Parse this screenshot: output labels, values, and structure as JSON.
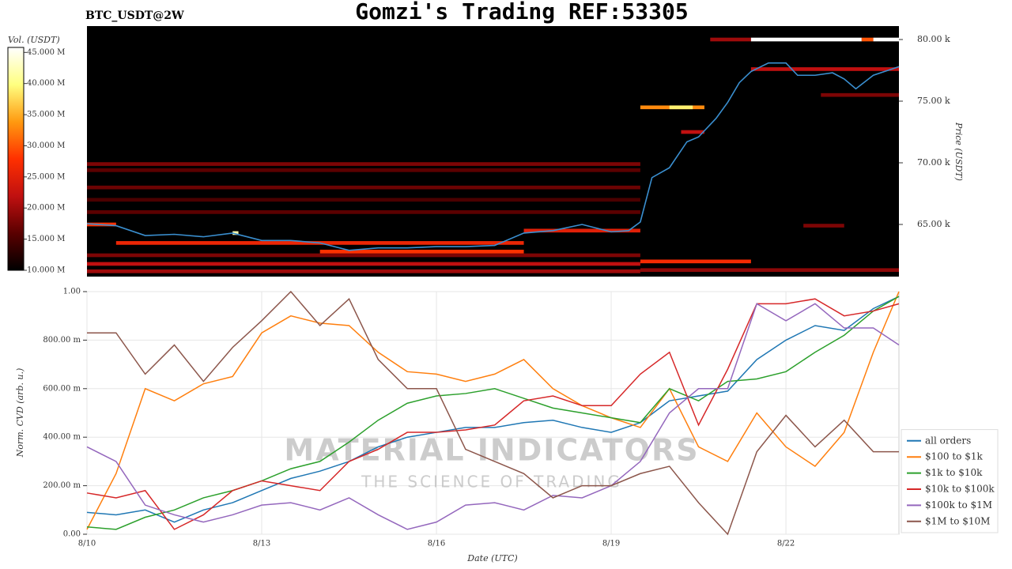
{
  "chart_data": [
    {
      "type": "heatmap",
      "title": "Gomzi's Trading REF:53305",
      "subtitle": "BTC_USDT@2W",
      "y_label": "Price (USDT)",
      "colorbar_label": "Vol. (USDT)",
      "xlim": [
        0,
        13.94
      ],
      "ylim": [
        60770,
        81090
      ],
      "yticks": [
        {
          "value": 65000,
          "label": "65.00 k"
        },
        {
          "value": 70000,
          "label": "70.00 k"
        },
        {
          "value": 75000,
          "label": "75.00 k"
        },
        {
          "value": 80000,
          "label": "80.00 k"
        }
      ],
      "clim": [
        10,
        45.8
      ],
      "cticks": [
        {
          "value": 10,
          "label": "10.000 M"
        },
        {
          "value": 15,
          "label": "15.000 M"
        },
        {
          "value": 20,
          "label": "20.000 M"
        },
        {
          "value": 25,
          "label": "25.000 M"
        },
        {
          "value": 30,
          "label": "30.000 M"
        },
        {
          "value": 35,
          "label": "35.000 M"
        },
        {
          "value": 40,
          "label": "40.000 M"
        },
        {
          "value": 45,
          "label": "45.000 M"
        }
      ],
      "colorscale": [
        "#000000",
        "#5a0000",
        "#c01010",
        "#ff3000",
        "#ff9a10",
        "#ffff80",
        "#ffffff"
      ],
      "cells": [
        {
          "x": [
            0,
            9.5
          ],
          "y": 69900,
          "value": 18
        },
        {
          "x": [
            0,
            9.5
          ],
          "y": 69400,
          "value": 16
        },
        {
          "x": [
            0,
            9.5
          ],
          "y": 68000,
          "value": 17
        },
        {
          "x": [
            0,
            9.5
          ],
          "y": 67000,
          "value": 15
        },
        {
          "x": [
            0,
            9.5
          ],
          "y": 66000,
          "value": 16
        },
        {
          "x": [
            0,
            0.5
          ],
          "y": 65000,
          "value": 28
        },
        {
          "x": [
            0,
            9.5
          ],
          "y": 62500,
          "value": 18
        },
        {
          "x": [
            0,
            9.5
          ],
          "y": 61800,
          "value": 22
        },
        {
          "x": [
            0,
            9.5
          ],
          "y": 61200,
          "value": 20
        },
        {
          "x": [
            0.5,
            7.5
          ],
          "y": 63500,
          "value": 26
        },
        {
          "x": [
            4,
            7.5
          ],
          "y": 62800,
          "value": 28
        },
        {
          "x": [
            7.5,
            9.5
          ],
          "y": 64500,
          "value": 25
        },
        {
          "x": [
            2.5,
            2.6
          ],
          "y": 64300,
          "value": 42
        },
        {
          "x": [
            9.5,
            11.4
          ],
          "y": 62000,
          "value": 27
        },
        {
          "x": [
            9.5,
            13.94
          ],
          "y": 61300,
          "value": 19
        },
        {
          "x": [
            9.5,
            10.6
          ],
          "y": 74500,
          "value": 33
        },
        {
          "x": [
            10,
            10.4
          ],
          "y": 74500,
          "value": 39
        },
        {
          "x": [
            10.2,
            10.6
          ],
          "y": 72500,
          "value": 22
        },
        {
          "x": [
            10.7,
            11.4
          ],
          "y": 80000,
          "value": 20
        },
        {
          "x": [
            11.4,
            13.3
          ],
          "y": 80000,
          "value": 45.8
        },
        {
          "x": [
            13.3,
            13.5
          ],
          "y": 80000,
          "value": 30
        },
        {
          "x": [
            13.5,
            13.94
          ],
          "y": 80000,
          "value": 45.8
        },
        {
          "x": [
            12.6,
            13.94
          ],
          "y": 75500,
          "value": 18
        },
        {
          "x": [
            12.3,
            13
          ],
          "y": 64900,
          "value": 18
        },
        {
          "x": [
            11.4,
            13.94
          ],
          "y": 77600,
          "value": 22
        }
      ],
      "line": {
        "color": "#3a8fd0",
        "x": [
          0,
          0.5,
          1,
          1.5,
          2,
          2.5,
          3,
          3.5,
          4,
          4.5,
          5,
          5.5,
          6,
          6.5,
          7,
          7.5,
          8,
          8.5,
          9,
          9.3,
          9.5,
          9.7,
          10,
          10.3,
          10.5,
          10.8,
          11,
          11.2,
          11.4,
          11.7,
          12,
          12.2,
          12.5,
          12.8,
          13,
          13.2,
          13.5,
          13.94
        ],
        "values": [
          65060,
          64900,
          64100,
          64200,
          64000,
          64300,
          63700,
          63700,
          63500,
          62900,
          63100,
          63100,
          63200,
          63200,
          63300,
          64300,
          64500,
          65000,
          64400,
          64500,
          65200,
          68800,
          69600,
          71700,
          72100,
          73600,
          74900,
          76500,
          77400,
          78100,
          78100,
          77100,
          77100,
          77300,
          76800,
          76000,
          77100,
          77800
        ]
      }
    },
    {
      "type": "line",
      "x_label": "Date (UTC)",
      "y_label": "Norm. CVD (arb. u.)",
      "xlim": [
        0,
        13.94
      ],
      "ylim": [
        0,
        1
      ],
      "grid": true,
      "legend": "lower right",
      "watermark": [
        "MATERIAL INDICATORS",
        "THE SCIENCE OF TRADING"
      ],
      "xticks": [
        {
          "value": 0,
          "label": "8/10"
        },
        {
          "value": 3,
          "label": "8/13"
        },
        {
          "value": 6,
          "label": "8/16"
        },
        {
          "value": 9,
          "label": "8/19"
        },
        {
          "value": 12,
          "label": "8/22"
        }
      ],
      "yticks": [
        {
          "value": 0,
          "label": "0.00"
        },
        {
          "value": 0.2,
          "label": "200.00 m"
        },
        {
          "value": 0.4,
          "label": "400.00 m"
        },
        {
          "value": 0.6,
          "label": "600.00 m"
        },
        {
          "value": 0.8,
          "label": "800.00 m"
        },
        {
          "value": 1,
          "label": "1.00"
        }
      ],
      "x": [
        0,
        0.5,
        1,
        1.5,
        2,
        2.5,
        3,
        3.5,
        4,
        4.5,
        5,
        5.5,
        6,
        6.5,
        7,
        7.5,
        8,
        8.5,
        9,
        9.5,
        10,
        10.5,
        11,
        11.5,
        12,
        12.5,
        13,
        13.5,
        13.94
      ],
      "series": [
        {
          "name": "all orders",
          "color": "#1f77b4",
          "values": [
            0.09,
            0.08,
            0.1,
            0.05,
            0.1,
            0.13,
            0.18,
            0.23,
            0.26,
            0.3,
            0.36,
            0.4,
            0.42,
            0.44,
            0.44,
            0.46,
            0.47,
            0.44,
            0.42,
            0.46,
            0.55,
            0.57,
            0.59,
            0.72,
            0.8,
            0.86,
            0.84,
            0.93,
            0.98
          ]
        },
        {
          "name": "$100 to $1k",
          "color": "#ff7f0e",
          "values": [
            0.02,
            0.25,
            0.6,
            0.55,
            0.62,
            0.65,
            0.83,
            0.9,
            0.87,
            0.86,
            0.75,
            0.67,
            0.66,
            0.63,
            0.66,
            0.72,
            0.6,
            0.53,
            0.48,
            0.44,
            0.6,
            0.36,
            0.3,
            0.5,
            0.36,
            0.28,
            0.42,
            0.75,
            1.0
          ]
        },
        {
          "name": "$1k to $10k",
          "color": "#2ca02c",
          "values": [
            0.03,
            0.02,
            0.07,
            0.1,
            0.15,
            0.18,
            0.22,
            0.27,
            0.3,
            0.38,
            0.47,
            0.54,
            0.57,
            0.58,
            0.6,
            0.56,
            0.52,
            0.5,
            0.48,
            0.46,
            0.6,
            0.55,
            0.63,
            0.64,
            0.67,
            0.75,
            0.82,
            0.92,
            0.98
          ]
        },
        {
          "name": "$10k to $100k",
          "color": "#d62728",
          "values": [
            0.17,
            0.15,
            0.18,
            0.02,
            0.08,
            0.18,
            0.22,
            0.2,
            0.18,
            0.3,
            0.35,
            0.42,
            0.42,
            0.43,
            0.45,
            0.55,
            0.57,
            0.53,
            0.53,
            0.66,
            0.75,
            0.45,
            0.68,
            0.95,
            0.95,
            0.97,
            0.9,
            0.92,
            0.95
          ]
        },
        {
          "name": "$100k to $1M",
          "color": "#9467bd",
          "values": [
            0.36,
            0.3,
            0.12,
            0.08,
            0.05,
            0.08,
            0.12,
            0.13,
            0.1,
            0.15,
            0.08,
            0.02,
            0.05,
            0.12,
            0.13,
            0.1,
            0.16,
            0.15,
            0.2,
            0.3,
            0.5,
            0.6,
            0.6,
            0.95,
            0.88,
            0.95,
            0.85,
            0.85,
            0.78
          ]
        },
        {
          "name": "$1M to $10M",
          "color": "#8c564b",
          "values": [
            0.83,
            0.83,
            0.66,
            0.78,
            0.63,
            0.77,
            0.88,
            1.0,
            0.86,
            0.97,
            0.72,
            0.6,
            0.6,
            0.35,
            0.3,
            0.25,
            0.15,
            0.2,
            0.2,
            0.25,
            0.28,
            0.13,
            0.0,
            0.34,
            0.49,
            0.36,
            0.47,
            0.34,
            0.34
          ]
        }
      ]
    }
  ]
}
